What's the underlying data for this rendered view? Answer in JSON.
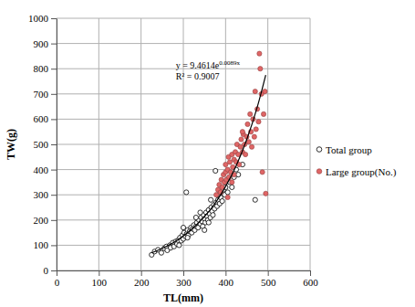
{
  "chart_data": {
    "type": "scatter",
    "x_label": "TL(mm)",
    "y_label": "TW(g)",
    "xlim": [
      0,
      600
    ],
    "ylim": [
      0,
      1000
    ],
    "xticks": [
      0,
      100,
      200,
      300,
      400,
      500,
      600
    ],
    "yticks": [
      0,
      100,
      200,
      300,
      400,
      500,
      600,
      700,
      800,
      900,
      1000
    ],
    "grid": true,
    "legend": "right",
    "annotations": [
      {
        "text": "y = 9.4614e",
        "superscript": "0.0089x"
      },
      {
        "text": "R² = 0.9007"
      }
    ],
    "series": [
      {
        "name": "Total group",
        "color": "#000000",
        "marker": "circle-open",
        "x": [
          225,
          232,
          240,
          248,
          255,
          260,
          262,
          268,
          270,
          275,
          278,
          282,
          285,
          288,
          290,
          292,
          295,
          298,
          300,
          302,
          305,
          307,
          308,
          310,
          312,
          315,
          318,
          320,
          322,
          325,
          327,
          330,
          332,
          335,
          337,
          340,
          342,
          344,
          346,
          348,
          350,
          352,
          354,
          356,
          358,
          360,
          362,
          364,
          366,
          368,
          370,
          372,
          374,
          376,
          378,
          380,
          382,
          384,
          386,
          388,
          390,
          392,
          395,
          398,
          400,
          405,
          410,
          415,
          420,
          425,
          430,
          440,
          470,
          350,
          340,
          365,
          330,
          310,
          300,
          360
        ],
        "values": [
          62,
          75,
          82,
          70,
          88,
          95,
          80,
          100,
          90,
          110,
          95,
          115,
          105,
          120,
          100,
          130,
          118,
          140,
          125,
          150,
          135,
          310,
          145,
          160,
          140,
          155,
          170,
          150,
          165,
          180,
          160,
          175,
          190,
          170,
          200,
          185,
          210,
          195,
          175,
          220,
          205,
          190,
          230,
          215,
          200,
          240,
          225,
          210,
          250,
          235,
          220,
          260,
          245,
          395,
          270,
          255,
          280,
          300,
          265,
          290,
          310,
          275,
          320,
          300,
          330,
          310,
          350,
          330,
          370,
          400,
          380,
          420,
          280,
          160,
          230,
          280,
          210,
          130,
          170,
          190
        ]
      },
      {
        "name": "Large group(No.)",
        "color": "#e06666",
        "marker": "circle",
        "x": [
          378,
          382,
          385,
          388,
          390,
          392,
          395,
          397,
          400,
          400,
          402,
          405,
          407,
          408,
          410,
          412,
          415,
          417,
          420,
          420,
          423,
          425,
          427,
          430,
          432,
          435,
          437,
          440,
          442,
          445,
          447,
          450,
          452,
          455,
          458,
          460,
          462,
          465,
          468,
          470,
          472,
          475,
          478,
          480,
          482,
          485,
          487,
          490,
          493,
          495,
          415,
          405,
          440
        ],
        "values": [
          300,
          320,
          340,
          310,
          360,
          330,
          380,
          350,
          390,
          420,
          360,
          400,
          450,
          370,
          430,
          390,
          460,
          410,
          440,
          380,
          470,
          430,
          500,
          460,
          420,
          490,
          520,
          470,
          540,
          500,
          460,
          530,
          580,
          510,
          620,
          550,
          490,
          600,
          530,
          710,
          560,
          640,
          590,
          860,
          800,
          700,
          390,
          620,
          710,
          305,
          350,
          290,
          550
        ]
      },
      {
        "type": "line",
        "color": "#000000",
        "line_style": "solid",
        "x": [
          225,
          250,
          275,
          300,
          325,
          350,
          375,
          400,
          425,
          450,
          475,
          495
        ],
        "values": [
          70,
          88,
          109,
          137,
          171,
          213,
          266,
          333,
          415,
          519,
          648,
          775
        ]
      }
    ]
  }
}
